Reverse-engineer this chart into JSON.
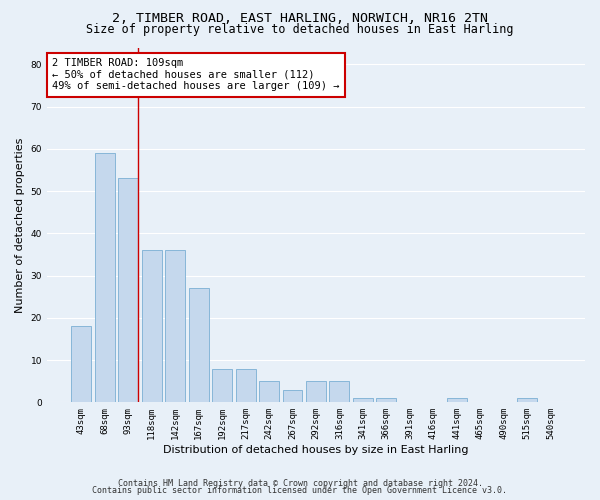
{
  "title1": "2, TIMBER ROAD, EAST HARLING, NORWICH, NR16 2TN",
  "title2": "Size of property relative to detached houses in East Harling",
  "xlabel": "Distribution of detached houses by size in East Harling",
  "ylabel": "Number of detached properties",
  "categories": [
    "43sqm",
    "68sqm",
    "93sqm",
    "118sqm",
    "142sqm",
    "167sqm",
    "192sqm",
    "217sqm",
    "242sqm",
    "267sqm",
    "292sqm",
    "316sqm",
    "341sqm",
    "366sqm",
    "391sqm",
    "416sqm",
    "441sqm",
    "465sqm",
    "490sqm",
    "515sqm",
    "540sqm"
  ],
  "values": [
    18,
    59,
    53,
    36,
    36,
    27,
    8,
    8,
    5,
    3,
    5,
    5,
    1,
    1,
    0,
    0,
    1,
    0,
    0,
    1,
    0
  ],
  "bar_color": "#c5d8ed",
  "bar_edge_color": "#7aafd4",
  "background_color": "#e8f0f8",
  "plot_bg_color": "#e8f0f8",
  "grid_color": "#ffffff",
  "vline_color": "#cc0000",
  "vline_x_index": 2,
  "annotation_text": "2 TIMBER ROAD: 109sqm\n← 50% of detached houses are smaller (112)\n49% of semi-detached houses are larger (109) →",
  "annotation_box_color": "#ffffff",
  "annotation_box_edge": "#cc0000",
  "ylim": [
    0,
    84
  ],
  "yticks": [
    0,
    10,
    20,
    30,
    40,
    50,
    60,
    70,
    80
  ],
  "footnote_line1": "Contains HM Land Registry data © Crown copyright and database right 2024.",
  "footnote_line2": "Contains public sector information licensed under the Open Government Licence v3.0.",
  "title_fontsize": 9.5,
  "subtitle_fontsize": 8.5,
  "ylabel_fontsize": 8,
  "xlabel_fontsize": 8,
  "tick_fontsize": 6.5,
  "annotation_fontsize": 7.5,
  "footnote_fontsize": 6
}
